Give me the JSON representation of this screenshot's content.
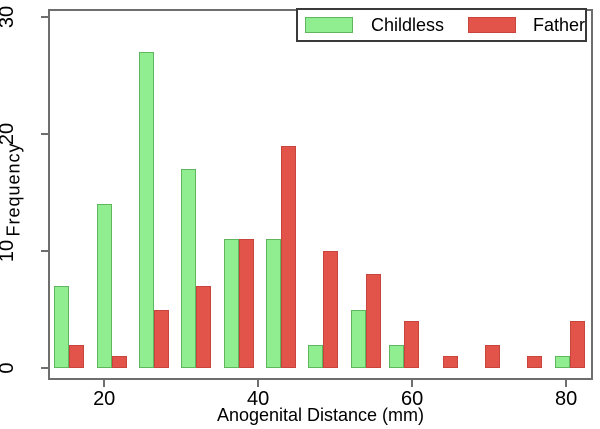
{
  "chart_data": {
    "type": "bar",
    "subtype": "grouped-histogram",
    "title": "",
    "xlabel": "Anogenital Distance (mm)",
    "ylabel": "Frequency",
    "bin_centers": [
      14.5,
      20,
      25.5,
      31,
      36.5,
      42,
      47.5,
      53,
      58,
      63,
      68.5,
      74,
      79.5
    ],
    "bin_width": 5.5,
    "series": [
      {
        "name": "Childless",
        "color": "#90ee90",
        "border_color": "#5fb65f",
        "values": [
          7,
          14,
          27,
          17,
          11,
          11,
          2,
          5,
          2,
          0,
          0,
          0,
          1
        ]
      },
      {
        "name": "Father",
        "color": "#e2544a",
        "border_color": "#c7453c",
        "values": [
          2,
          1,
          5,
          7,
          11,
          19,
          10,
          8,
          4,
          1,
          2,
          1,
          4
        ]
      }
    ],
    "x_ticks": [
      20,
      40,
      60,
      80
    ],
    "y_ticks": [
      0,
      10,
      20,
      30
    ],
    "x_range": [
      12.7,
      83.5
    ],
    "y_range": [
      0,
      30.5
    ],
    "grid": false,
    "legend_position": "top-right",
    "axis_color": "#6e6e6e",
    "text_color": "#000000",
    "background_color": "#ffffff"
  }
}
